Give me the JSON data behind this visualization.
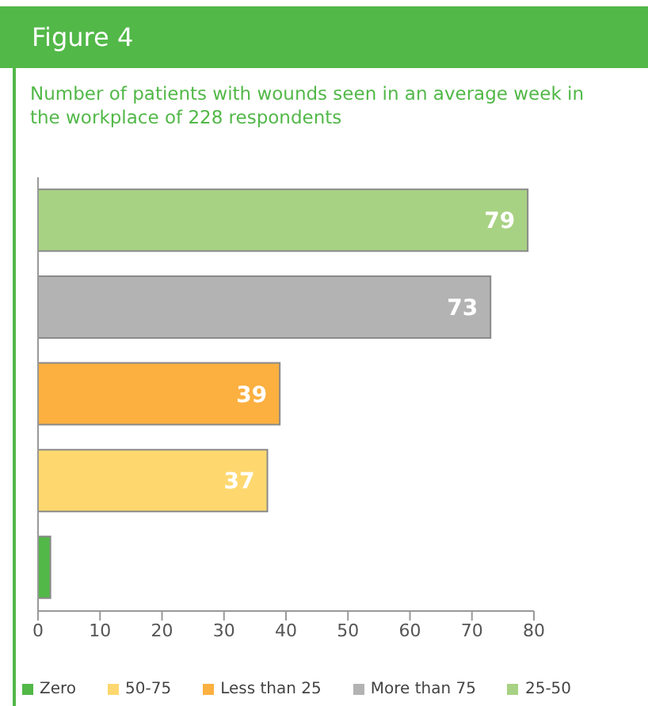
{
  "chart_data": {
    "type": "bar",
    "orientation": "horizontal",
    "stacked": true,
    "title": "Figure 4",
    "subtitle": "Number of patients with wounds seen in an average week in the workplace of 228 respondents",
    "categories": [
      null,
      null,
      null,
      null,
      null
    ],
    "series": [
      {
        "name": "Zero",
        "color": "#52b848",
        "values": [
          null,
          null,
          null,
          null,
          2
        ],
        "value_labels": [
          null,
          null,
          null,
          null,
          null
        ]
      },
      {
        "name": "50-75",
        "color": "#fed86f",
        "values": [
          null,
          null,
          null,
          37,
          null
        ],
        "value_labels": [
          null,
          null,
          null,
          "37",
          null
        ]
      },
      {
        "name": "Less than 25",
        "color": "#fbb040",
        "values": [
          null,
          null,
          39,
          null,
          null
        ],
        "value_labels": [
          null,
          null,
          "39",
          null,
          null
        ]
      },
      {
        "name": "More than 75",
        "color": "#b3b3b3",
        "values": [
          null,
          73,
          null,
          null,
          null
        ],
        "value_labels": [
          null,
          "73",
          null,
          null,
          null
        ]
      },
      {
        "name": "25-50",
        "color": "#a8d283",
        "values": [
          79,
          null,
          null,
          null,
          null
        ],
        "value_labels": [
          "79",
          null,
          null,
          null,
          null
        ]
      }
    ],
    "xlim": [
      0,
      80
    ],
    "xticks": [
      0,
      10,
      20,
      30,
      40,
      50,
      60,
      70,
      80
    ],
    "tick_labels": "x",
    "legend": "bottom",
    "grid": false
  }
}
